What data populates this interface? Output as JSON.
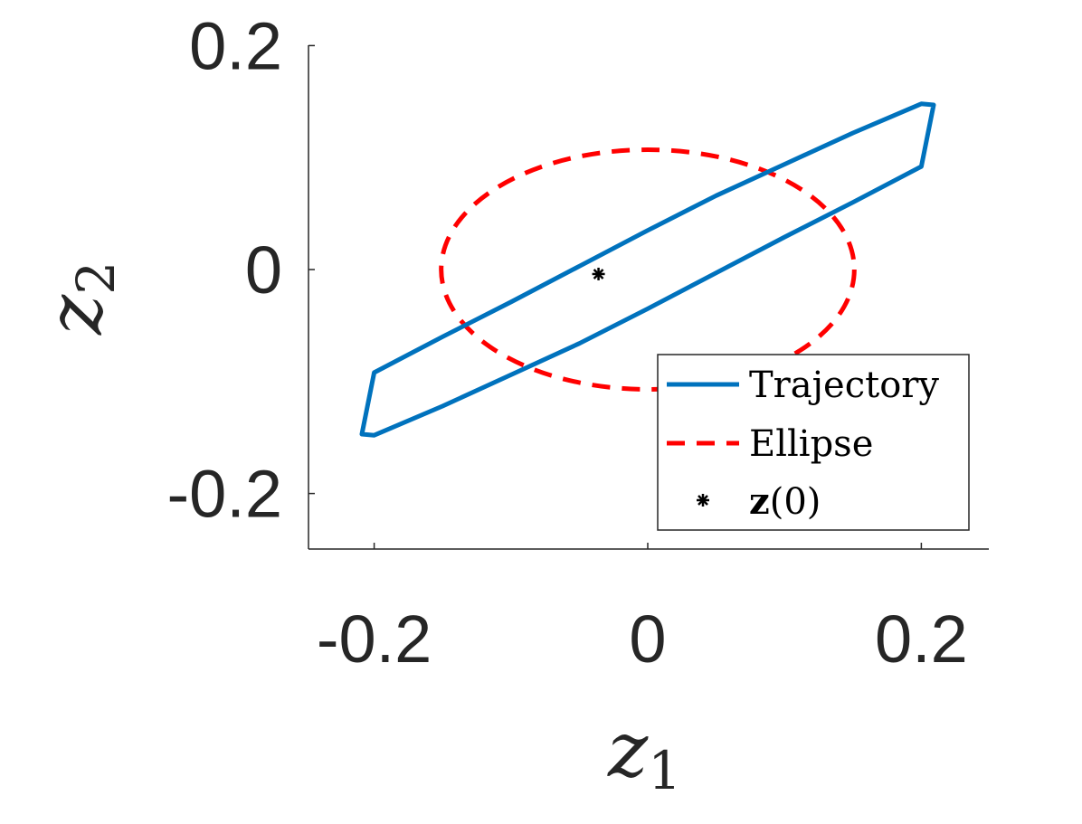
{
  "chart_data": {
    "type": "line",
    "xlabel": {
      "base": "z",
      "sub": "1"
    },
    "ylabel": {
      "base": "z",
      "sub": "2"
    },
    "xlim": [
      -0.25,
      0.25
    ],
    "ylim": [
      -0.25,
      0.25
    ],
    "x_ticks": [
      -0.2,
      0,
      0.2
    ],
    "y_ticks": [
      -0.2,
      0,
      0.2
    ],
    "x_tick_labels": [
      "-0.2",
      "0",
      "0.2"
    ],
    "y_tick_labels": [
      "-0.2",
      "0",
      "0.2"
    ],
    "legend": {
      "placement": "bottom-right",
      "entries": [
        "Trajectory",
        "Ellipse",
        "z(0)"
      ]
    },
    "series": [
      {
        "name": "Trajectory",
        "style": "solid",
        "color": "#0072BD",
        "x": [
          0.209,
          0.2,
          0.15,
          0.1,
          0.05,
          0.0,
          -0.05,
          -0.1,
          -0.15,
          -0.2,
          -0.209,
          -0.2,
          -0.15,
          -0.1,
          -0.05,
          0.0,
          0.05,
          0.1,
          0.15,
          0.2,
          0.209
        ],
        "y": [
          0.147,
          0.148,
          0.122,
          0.094,
          0.066,
          0.035,
          0.003,
          -0.029,
          -0.06,
          -0.092,
          -0.147,
          -0.148,
          -0.122,
          -0.094,
          -0.066,
          -0.035,
          -0.003,
          0.029,
          0.06,
          0.092,
          0.147
        ]
      },
      {
        "name": "Ellipse",
        "style": "dashed",
        "color": "#FF0000",
        "center": [
          0,
          0
        ],
        "semi_axes": [
          0.151,
          0.107
        ]
      },
      {
        "name": "z(0)",
        "style": "marker",
        "marker": "asterisk",
        "color": "#000000",
        "x": [
          -0.036
        ],
        "y": [
          -0.004
        ]
      }
    ]
  }
}
